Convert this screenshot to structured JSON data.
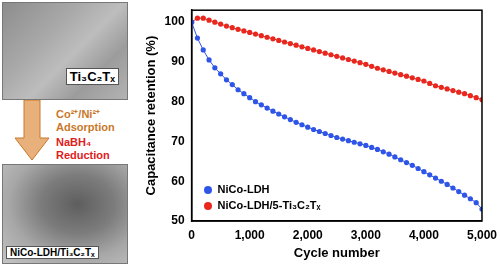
{
  "chart_data": {
    "type": "line",
    "x_label": "Cycle number",
    "y_label": "Capacitance retention (%)",
    "x": [
      0,
      100,
      200,
      300,
      400,
      500,
      600,
      700,
      800,
      900,
      1000,
      1100,
      1200,
      1300,
      1400,
      1500,
      1600,
      1700,
      1800,
      1900,
      2000,
      2100,
      2200,
      2300,
      2400,
      2500,
      2600,
      2700,
      2800,
      2900,
      3000,
      3100,
      3200,
      3300,
      3400,
      3500,
      3600,
      3700,
      3800,
      3900,
      4000,
      4100,
      4200,
      4300,
      4400,
      4500,
      4600,
      4700,
      4800,
      4900,
      5000
    ],
    "series": [
      {
        "name": "NiCo-LDH",
        "color": "#2f55e8",
        "marker": "circle",
        "values": [
          100,
          96,
          93,
          90.5,
          88.5,
          87,
          85.5,
          84.3,
          83,
          82,
          81,
          80,
          79.2,
          78.4,
          77.6,
          76.9,
          76.2,
          75.5,
          74.8,
          74.2,
          73.6,
          73,
          72.5,
          72,
          71.5,
          71,
          70.6,
          70.2,
          69.8,
          69.4,
          69,
          68.5,
          68,
          67.4,
          66.8,
          66.1,
          65.4,
          64.7,
          64,
          63.2,
          62.4,
          61.6,
          60.8,
          60,
          59.2,
          58.3,
          57.4,
          56.5,
          55.6,
          54.6,
          53
        ]
      },
      {
        "name": "NiCo-LDH/5-Ti₃C₂Tₓ",
        "color": "#e8281e",
        "marker": "circle",
        "values": [
          100,
          101,
          101,
          100.5,
          100,
          99.5,
          99,
          98.6,
          98.2,
          97.8,
          97.4,
          97,
          96.6,
          96.2,
          95.8,
          95.4,
          95,
          94.6,
          94.2,
          93.8,
          93.4,
          93,
          92.6,
          92.2,
          91.8,
          91.4,
          91,
          90.6,
          90.2,
          89.8,
          89.4,
          88.9,
          88.4,
          88,
          87.6,
          87.2,
          86.8,
          86.4,
          86,
          85.6,
          85.2,
          84.6,
          84,
          83.6,
          83.2,
          82.8,
          82.4,
          82,
          81.5,
          81,
          80.5
        ]
      }
    ],
    "xlim": [
      0,
      5000
    ],
    "xticks": [
      0,
      1000,
      2000,
      3000,
      4000,
      5000
    ],
    "ylim": [
      50,
      103
    ],
    "yticks": [
      50,
      60,
      70,
      80,
      90,
      100
    ],
    "grid": false,
    "legend": "lower left"
  },
  "schematic": {
    "top_image_label": "Ti₃C₂Tₓ",
    "step1": [
      "Co²⁺/Ni²⁺",
      "Adsorption"
    ],
    "step2": [
      "NaBH₄",
      "Reduction"
    ],
    "bottom_image_label": "NiCo-LDH/Ti₃C₂Tₓ"
  }
}
